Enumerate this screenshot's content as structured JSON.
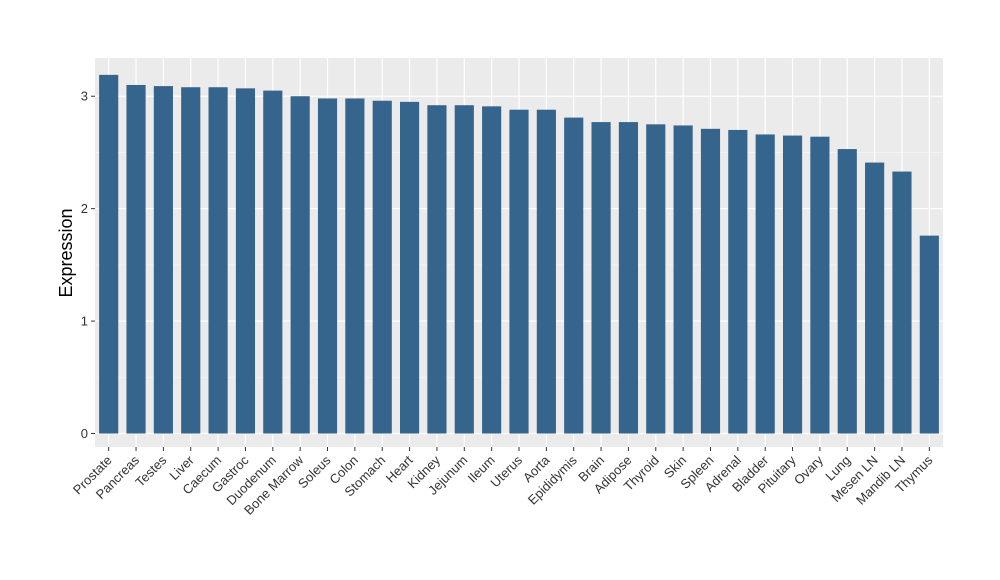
{
  "chart_data": {
    "type": "bar",
    "title": "",
    "xlabel": "",
    "ylabel": "Expression",
    "ylim": [
      -0.12,
      3.34
    ],
    "yticks": [
      0,
      1,
      2,
      3
    ],
    "grid": true,
    "legend": "none",
    "categories": [
      "Prostate",
      "Pancreas",
      "Testes",
      "Liver",
      "Caecum",
      "Gastroc",
      "Duodenum",
      "Bone Marrow",
      "Soleus",
      "Colon",
      "Stomach",
      "Heart",
      "Kidney",
      "Jejunum",
      "Ileum",
      "Uterus",
      "Aorta",
      "Epididymis",
      "Brain",
      "Adipose",
      "Thyroid",
      "Skin",
      "Spleen",
      "Adrenal",
      "Bladder",
      "Pituitary",
      "Ovary",
      "Lung",
      "Mesen LN",
      "Mandib LN",
      "Thymus"
    ],
    "values": [
      3.19,
      3.1,
      3.09,
      3.08,
      3.08,
      3.07,
      3.05,
      3.0,
      2.98,
      2.98,
      2.96,
      2.95,
      2.92,
      2.92,
      2.91,
      2.88,
      2.88,
      2.81,
      2.77,
      2.77,
      2.75,
      2.74,
      2.71,
      2.7,
      2.66,
      2.65,
      2.64,
      2.53,
      2.41,
      2.33,
      1.76
    ],
    "colors": {
      "bar": "#35648D",
      "panel": "#EBEBEB",
      "grid_major": "#FFFFFF",
      "grid_minor": "#F5F5F5",
      "tick": "#333333"
    }
  }
}
